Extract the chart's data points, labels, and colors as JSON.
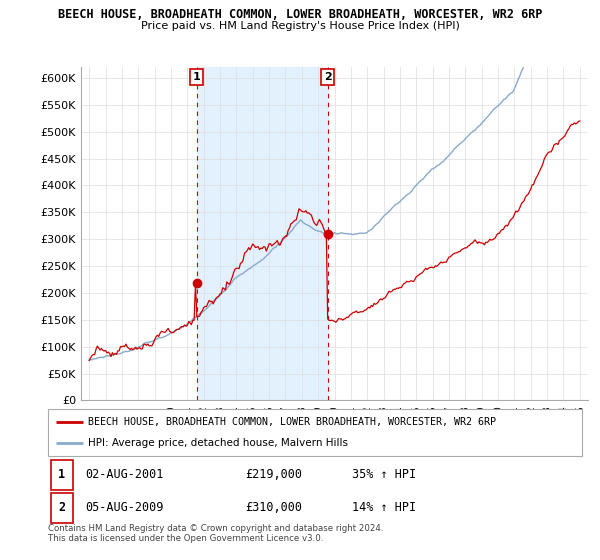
{
  "title_line1": "BEECH HOUSE, BROADHEATH COMMON, LOWER BROADHEATH, WORCESTER, WR2 6RP",
  "title_line2": "Price paid vs. HM Land Registry's House Price Index (HPI)",
  "ylim": [
    0,
    620000
  ],
  "yticks": [
    0,
    50000,
    100000,
    150000,
    200000,
    250000,
    300000,
    350000,
    400000,
    450000,
    500000,
    550000,
    600000
  ],
  "ytick_labels": [
    "£0",
    "£50K",
    "£100K",
    "£150K",
    "£200K",
    "£250K",
    "£300K",
    "£350K",
    "£400K",
    "£450K",
    "£500K",
    "£550K",
    "£600K"
  ],
  "sale1_label": "02-AUG-2001",
  "sale1_price": 219000,
  "sale1_pct": "35%",
  "sale1_year": 2001.583,
  "sale2_label": "05-AUG-2009",
  "sale2_price": 310000,
  "sale2_pct": "14%",
  "sale2_year": 2009.583,
  "legend_line1": "BEECH HOUSE, BROADHEATH COMMON, LOWER BROADHEATH, WORCESTER, WR2 6RP",
  "legend_line2": "HPI: Average price, detached house, Malvern Hills",
  "footer": "Contains HM Land Registry data © Crown copyright and database right 2024.\nThis data is licensed under the Open Government Licence v3.0.",
  "line_color_red": "#cc0000",
  "line_color_blue": "#88aacc",
  "shade_color": "#ddeeff",
  "grid_color": "#dddddd",
  "start_year": 1995,
  "end_year": 2025
}
